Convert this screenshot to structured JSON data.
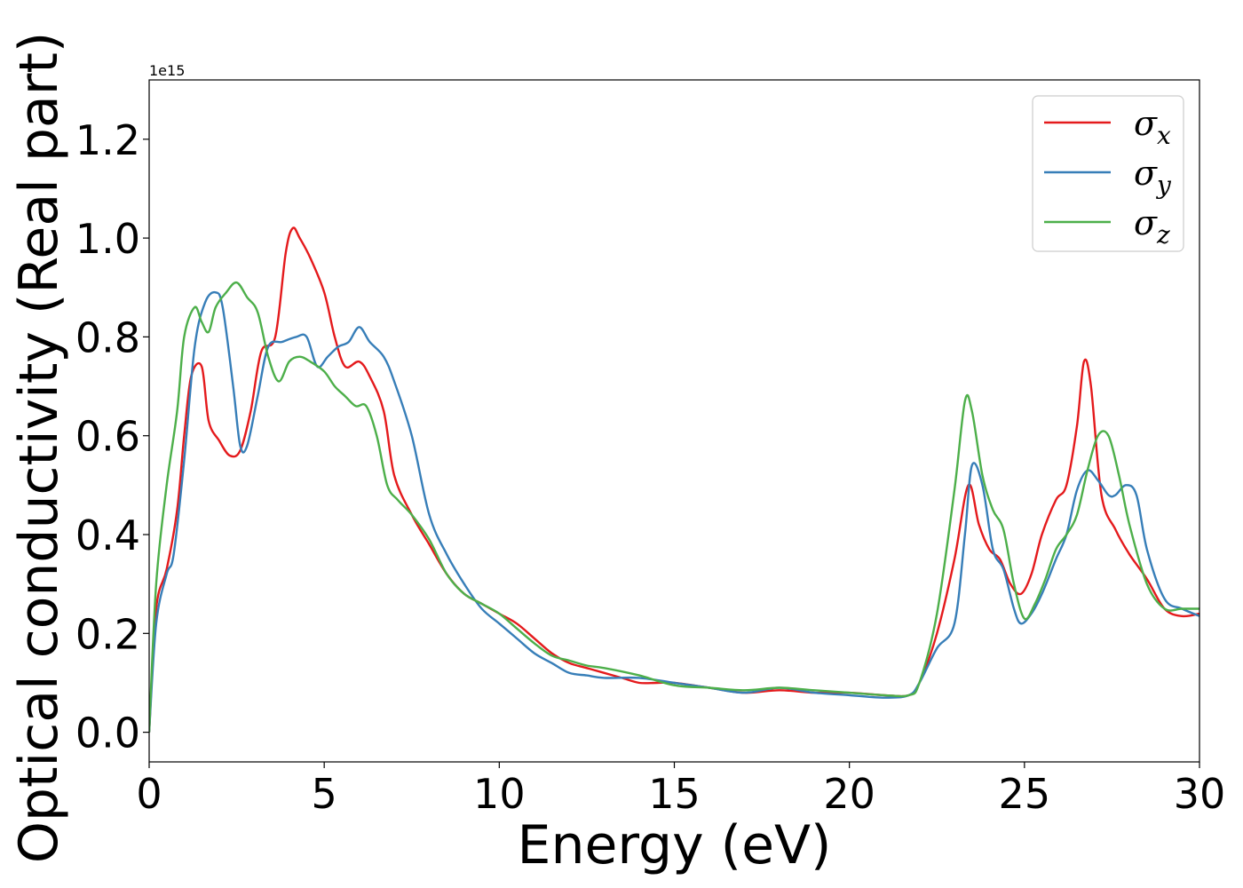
{
  "chart_data": {
    "type": "line",
    "xlabel": "Energy (eV)",
    "ylabel": "Optical conductivity (Real part)",
    "y_offset_label": "1e15",
    "xlim": [
      0,
      30
    ],
    "ylim": [
      -0.06,
      1.32
    ],
    "xticks": [
      0,
      5,
      10,
      15,
      20,
      25,
      30
    ],
    "xtick_labels": [
      "0",
      "5",
      "10",
      "15",
      "20",
      "25",
      "30"
    ],
    "yticks": [
      0.0,
      0.2,
      0.4,
      0.6,
      0.8,
      1.0,
      1.2
    ],
    "ytick_labels": [
      "0.0",
      "0.2",
      "0.4",
      "0.6",
      "0.8",
      "1.0",
      "1.2"
    ],
    "grid": false,
    "legend_position": "top-right",
    "series": [
      {
        "name": "σx",
        "label_base": "σ",
        "label_sub": "x",
        "color": "#e41a1c",
        "x": [
          0,
          0.2,
          0.5,
          0.8,
          1.0,
          1.2,
          1.5,
          1.7,
          2.0,
          2.3,
          2.6,
          2.9,
          3.2,
          3.6,
          3.9,
          4.1,
          4.3,
          4.6,
          5.0,
          5.3,
          5.6,
          6.0,
          6.3,
          6.7,
          7.0,
          7.5,
          8.0,
          8.5,
          9.0,
          9.5,
          10.0,
          10.5,
          11.0,
          11.5,
          12.0,
          12.5,
          13.0,
          13.5,
          14.0,
          14.5,
          15.0,
          16.0,
          17.0,
          18.0,
          19.0,
          20.0,
          21.0,
          21.7,
          22.0,
          22.5,
          23.0,
          23.4,
          23.7,
          24.0,
          24.3,
          24.6,
          24.9,
          25.2,
          25.5,
          25.9,
          26.2,
          26.5,
          26.7,
          26.9,
          27.2,
          27.6,
          28.0,
          28.5,
          29.0,
          29.5,
          30.0
        ],
        "values": [
          0.0,
          0.25,
          0.33,
          0.45,
          0.6,
          0.72,
          0.74,
          0.63,
          0.59,
          0.56,
          0.57,
          0.65,
          0.77,
          0.8,
          0.97,
          1.02,
          1.0,
          0.96,
          0.89,
          0.8,
          0.74,
          0.75,
          0.72,
          0.65,
          0.52,
          0.44,
          0.38,
          0.32,
          0.28,
          0.26,
          0.24,
          0.22,
          0.19,
          0.16,
          0.14,
          0.13,
          0.12,
          0.11,
          0.1,
          0.1,
          0.1,
          0.09,
          0.08,
          0.085,
          0.08,
          0.08,
          0.075,
          0.075,
          0.1,
          0.2,
          0.35,
          0.5,
          0.42,
          0.37,
          0.35,
          0.3,
          0.28,
          0.32,
          0.4,
          0.47,
          0.5,
          0.62,
          0.75,
          0.7,
          0.48,
          0.41,
          0.36,
          0.31,
          0.25,
          0.235,
          0.24
        ]
      },
      {
        "name": "σy",
        "label_base": "σ",
        "label_sub": "y",
        "color": "#377eb8",
        "x": [
          0,
          0.2,
          0.5,
          0.7,
          1.0,
          1.3,
          1.6,
          1.9,
          2.1,
          2.4,
          2.6,
          2.8,
          3.1,
          3.4,
          3.8,
          4.2,
          4.5,
          4.8,
          5.1,
          5.4,
          5.7,
          6.0,
          6.3,
          6.7,
          7.0,
          7.5,
          8.0,
          8.5,
          9.0,
          9.5,
          10.0,
          10.5,
          11.0,
          11.5,
          12.0,
          12.5,
          13.0,
          14.0,
          15.0,
          16.0,
          17.0,
          18.0,
          19.0,
          20.0,
          21.0,
          21.7,
          22.0,
          22.5,
          23.0,
          23.3,
          23.5,
          23.8,
          24.1,
          24.4,
          24.7,
          24.9,
          25.2,
          25.5,
          25.9,
          26.2,
          26.5,
          26.8,
          27.1,
          27.4,
          27.6,
          27.9,
          28.2,
          28.5,
          29.0,
          29.5,
          30.0
        ],
        "values": [
          0.0,
          0.22,
          0.32,
          0.36,
          0.55,
          0.78,
          0.87,
          0.89,
          0.86,
          0.7,
          0.58,
          0.58,
          0.68,
          0.78,
          0.79,
          0.8,
          0.8,
          0.74,
          0.76,
          0.78,
          0.79,
          0.82,
          0.79,
          0.76,
          0.71,
          0.6,
          0.44,
          0.36,
          0.3,
          0.25,
          0.22,
          0.19,
          0.16,
          0.14,
          0.12,
          0.115,
          0.11,
          0.11,
          0.1,
          0.09,
          0.08,
          0.09,
          0.08,
          0.075,
          0.07,
          0.075,
          0.1,
          0.17,
          0.22,
          0.4,
          0.54,
          0.5,
          0.37,
          0.33,
          0.25,
          0.22,
          0.24,
          0.28,
          0.35,
          0.4,
          0.49,
          0.53,
          0.51,
          0.48,
          0.48,
          0.5,
          0.48,
          0.37,
          0.27,
          0.25,
          0.235
        ]
      },
      {
        "name": "σz",
        "label_base": "σ",
        "label_sub": "z",
        "color": "#4daf4a",
        "x": [
          0,
          0.2,
          0.5,
          0.8,
          1.0,
          1.3,
          1.5,
          1.7,
          1.9,
          2.2,
          2.5,
          2.8,
          3.1,
          3.4,
          3.7,
          4.0,
          4.3,
          4.6,
          5.0,
          5.3,
          5.6,
          5.9,
          6.2,
          6.5,
          6.8,
          7.1,
          7.5,
          8.0,
          8.5,
          9.0,
          9.5,
          10.0,
          10.5,
          11.0,
          11.5,
          12.0,
          12.5,
          13.0,
          14.0,
          15.0,
          16.0,
          17.0,
          18.0,
          19.0,
          20.0,
          21.0,
          21.7,
          22.0,
          22.5,
          23.0,
          23.3,
          23.5,
          23.8,
          24.1,
          24.4,
          24.7,
          25.0,
          25.3,
          25.6,
          25.9,
          26.2,
          26.5,
          26.8,
          27.1,
          27.4,
          27.7,
          28.0,
          28.5,
          29.0,
          29.5,
          30.0
        ],
        "values": [
          0.0,
          0.3,
          0.5,
          0.65,
          0.8,
          0.86,
          0.83,
          0.81,
          0.86,
          0.89,
          0.91,
          0.88,
          0.85,
          0.76,
          0.71,
          0.75,
          0.76,
          0.75,
          0.73,
          0.7,
          0.68,
          0.66,
          0.66,
          0.6,
          0.5,
          0.47,
          0.44,
          0.39,
          0.32,
          0.28,
          0.26,
          0.24,
          0.21,
          0.18,
          0.155,
          0.145,
          0.135,
          0.13,
          0.115,
          0.095,
          0.09,
          0.085,
          0.09,
          0.085,
          0.08,
          0.075,
          0.075,
          0.1,
          0.24,
          0.49,
          0.67,
          0.65,
          0.52,
          0.45,
          0.41,
          0.3,
          0.23,
          0.26,
          0.31,
          0.37,
          0.4,
          0.44,
          0.53,
          0.6,
          0.6,
          0.52,
          0.42,
          0.3,
          0.25,
          0.25,
          0.25
        ]
      }
    ]
  }
}
